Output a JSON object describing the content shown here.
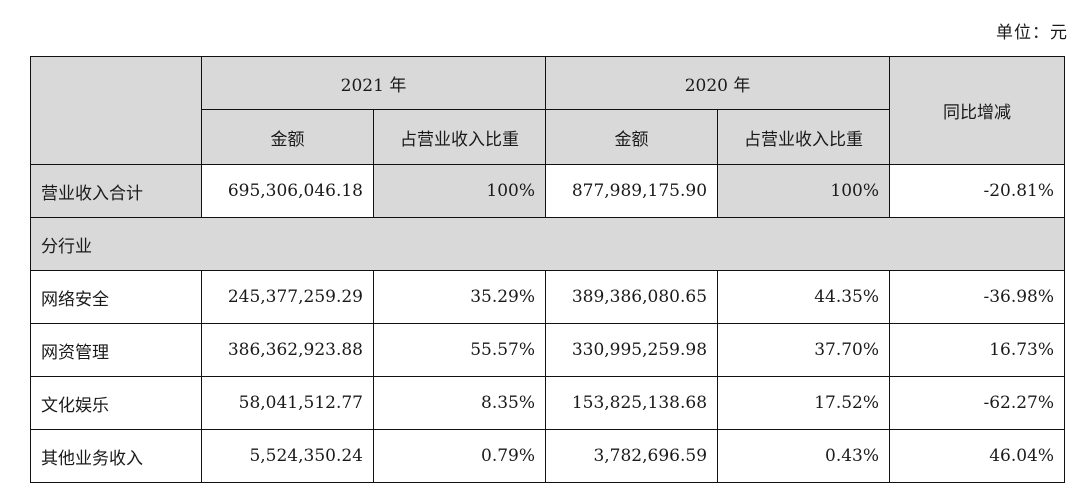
{
  "unit_label": "单位：元",
  "header": {
    "year_2021": "2021 年",
    "year_2020": "2020 年",
    "yoy": "同比增减",
    "amount": "金额",
    "ratio": "占营业收入比重"
  },
  "total_row": {
    "label": "营业收入合计",
    "amount_2021": "695,306,046.18",
    "ratio_2021": "100%",
    "amount_2020": "877,989,175.90",
    "ratio_2020": "100%",
    "yoy": "-20.81%"
  },
  "section_label": "分行业",
  "rows": [
    {
      "label": "网络安全",
      "amount_2021": "245,377,259.29",
      "ratio_2021": "35.29%",
      "amount_2020": "389,386,080.65",
      "ratio_2020": "44.35%",
      "yoy": "-36.98%"
    },
    {
      "label": "网资管理",
      "amount_2021": "386,362,923.88",
      "ratio_2021": "55.57%",
      "amount_2020": "330,995,259.98",
      "ratio_2020": "37.70%",
      "yoy": "16.73%"
    },
    {
      "label": "文化娱乐",
      "amount_2021": "58,041,512.77",
      "ratio_2021": "8.35%",
      "amount_2020": "153,825,138.68",
      "ratio_2020": "17.52%",
      "yoy": "-62.27%"
    },
    {
      "label": "其他业务收入",
      "amount_2021": "5,524,350.24",
      "ratio_2021": "0.79%",
      "amount_2020": "3,782,696.59",
      "ratio_2020": "0.43%",
      "yoy": "46.04%"
    }
  ]
}
